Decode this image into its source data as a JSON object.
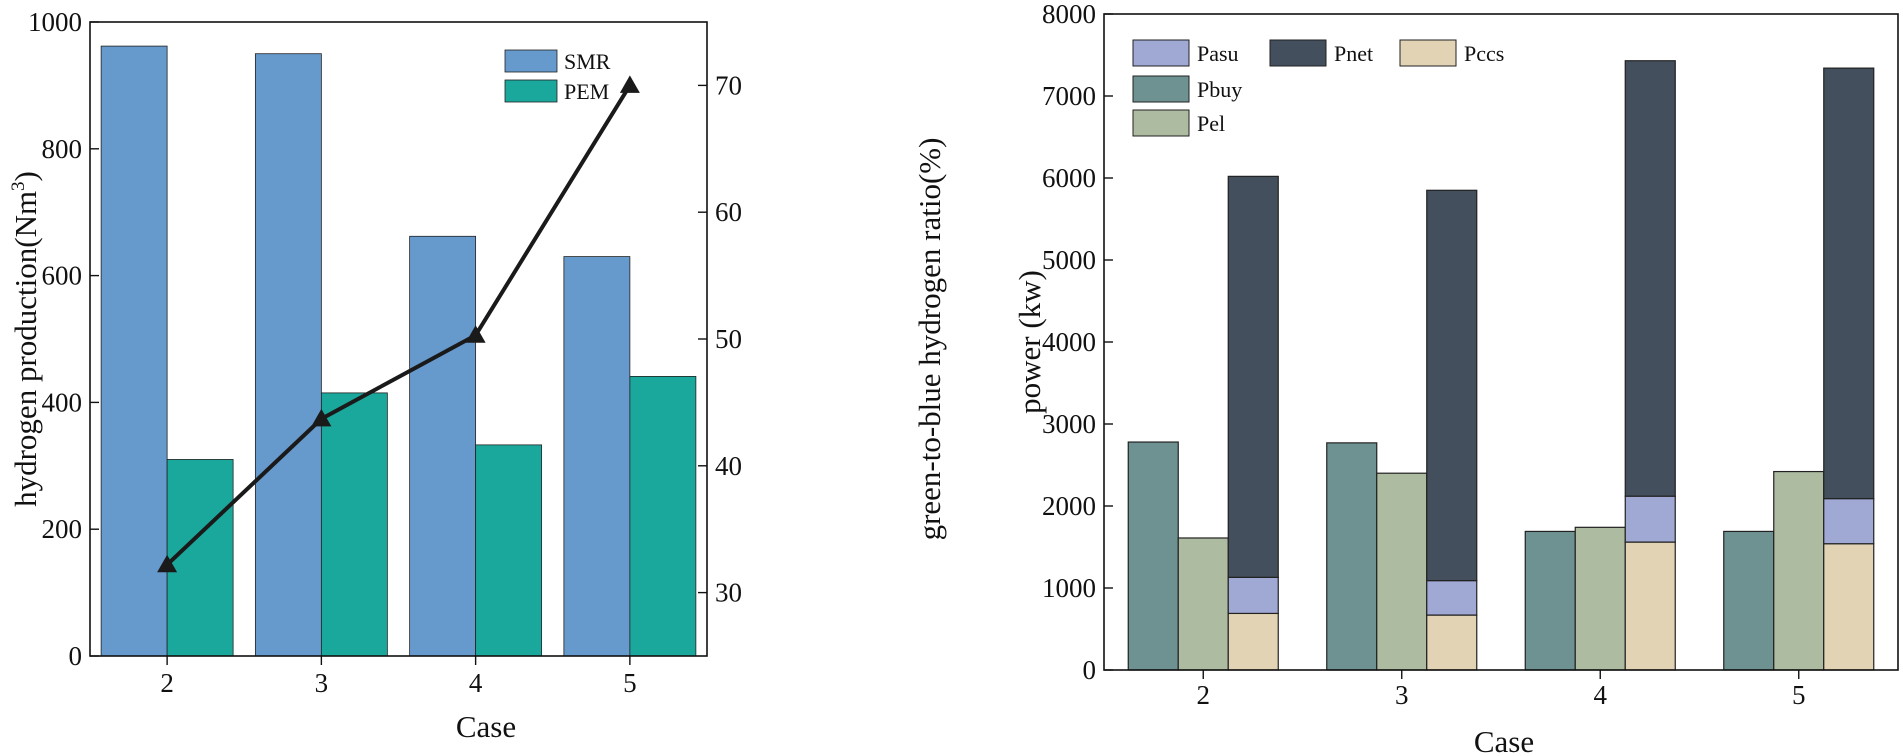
{
  "chart_data": [
    {
      "type": "bar",
      "categories": [
        "2",
        "3",
        "4",
        "5"
      ],
      "xlabel": "Case",
      "ylabel_prefix": "hydrogen production(Nm",
      "ylabel_sup": "3",
      "ylabel_suffix": ")",
      "ylabel2": "green-to-blue hydrogen ratio(%)",
      "ylim": [
        0,
        1000
      ],
      "yticks": [
        0,
        200,
        400,
        600,
        800,
        1000
      ],
      "y2lim": [
        25,
        75
      ],
      "y2ticks": [
        30,
        40,
        50,
        60,
        70
      ],
      "series": [
        {
          "name": "SMR",
          "kind": "bar",
          "axis": "left",
          "color": "#6699cc",
          "values": [
            962,
            950,
            662,
            630
          ]
        },
        {
          "name": "PEM",
          "kind": "bar",
          "axis": "left",
          "color": "#1aa89c",
          "values": [
            310,
            415,
            333,
            441
          ]
        },
        {
          "name": "green-to-blue hydrogen ratio",
          "kind": "line",
          "axis": "right",
          "color": "#1a1a1a",
          "marker": "triangle",
          "values": [
            32.2,
            43.7,
            50.3,
            70.0
          ]
        }
      ],
      "legend": "top-center"
    },
    {
      "type": "bar",
      "categories": [
        "2",
        "3",
        "4",
        "5"
      ],
      "xlabel": "Case",
      "ylabel": "power (kw)",
      "ylim": [
        0,
        8000
      ],
      "yticks": [
        0,
        1000,
        2000,
        3000,
        4000,
        5000,
        6000,
        7000,
        8000
      ],
      "series": [
        {
          "name": "Pbuy",
          "color": "#6e9191",
          "values": [
            2780,
            2770,
            1690,
            1690
          ]
        },
        {
          "name": "Pel",
          "color": "#adbba0",
          "values": [
            1610,
            2400,
            1740,
            2420
          ]
        },
        {
          "name": "Pccs",
          "color": "#e3d3b5",
          "stack": "third",
          "values": [
            690,
            670,
            1560,
            1540
          ]
        },
        {
          "name": "Pasu",
          "color": "#a0a8d4",
          "stack": "third",
          "values": [
            440,
            420,
            560,
            550
          ]
        },
        {
          "name": "Pnet",
          "color": "#434f5c",
          "stack": "third",
          "values": [
            4890,
            4760,
            5310,
            5250
          ]
        }
      ],
      "legend_order": [
        "Pasu",
        "Pnet",
        "Pccs",
        "Pbuy",
        "Pel"
      ],
      "legend": "top-left"
    }
  ]
}
